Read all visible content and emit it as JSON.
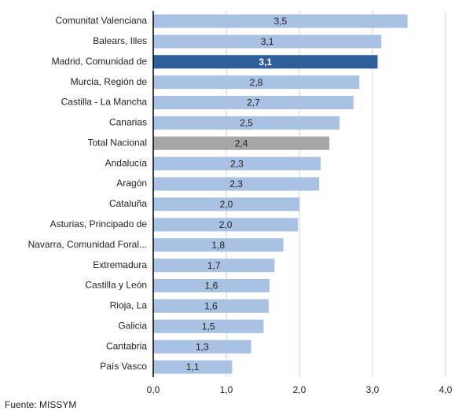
{
  "chart_data": {
    "type": "hbar",
    "categories": [
      "Comunitat Valenciana",
      "Balears, Illes",
      "Madrid, Comunidad de",
      "Murcia, Región de",
      "Castilla - La Mancha",
      "Canarias",
      "Total Nacional",
      "Andalucía",
      "Aragón",
      "Cataluña",
      "Asturias, Principado de",
      "Navarra, Comunidad Foral...",
      "Extremadura",
      "Castilla y León",
      "Rioja, La",
      "Galicia",
      "Cantabria",
      "País Vasco"
    ],
    "values": [
      3.48,
      3.12,
      3.07,
      2.82,
      2.74,
      2.55,
      2.41,
      2.29,
      2.27,
      2.0,
      1.98,
      1.78,
      1.66,
      1.59,
      1.58,
      1.51,
      1.34,
      1.08
    ],
    "value_labels": [
      "3,5",
      "3,1",
      "3,1",
      "2,8",
      "2,7",
      "2,5",
      "2,4",
      "2,3",
      "2,3",
      "2,0",
      "2,0",
      "1,8",
      "1,7",
      "1,6",
      "1,6",
      "1,5",
      "1,3",
      "1,1"
    ],
    "colors": [
      "#a9c1e3",
      "#a9c1e3",
      "#2f5f99",
      "#a9c1e3",
      "#a9c1e3",
      "#a9c1e3",
      "#a6a6a6",
      "#a9c1e3",
      "#a9c1e3",
      "#a9c1e3",
      "#a9c1e3",
      "#a9c1e3",
      "#a9c1e3",
      "#a9c1e3",
      "#a9c1e3",
      "#a9c1e3",
      "#a9c1e3",
      "#a9c1e3"
    ],
    "xlim": [
      0,
      4
    ],
    "xticks": [
      {
        "value": 0,
        "label": "0,0"
      },
      {
        "value": 1,
        "label": "1,0"
      },
      {
        "value": 2,
        "label": "2,0"
      },
      {
        "value": 3,
        "label": "3,0"
      },
      {
        "value": 4,
        "label": "4,0"
      }
    ],
    "grid": true,
    "source": "Fuente: MISSYM"
  }
}
